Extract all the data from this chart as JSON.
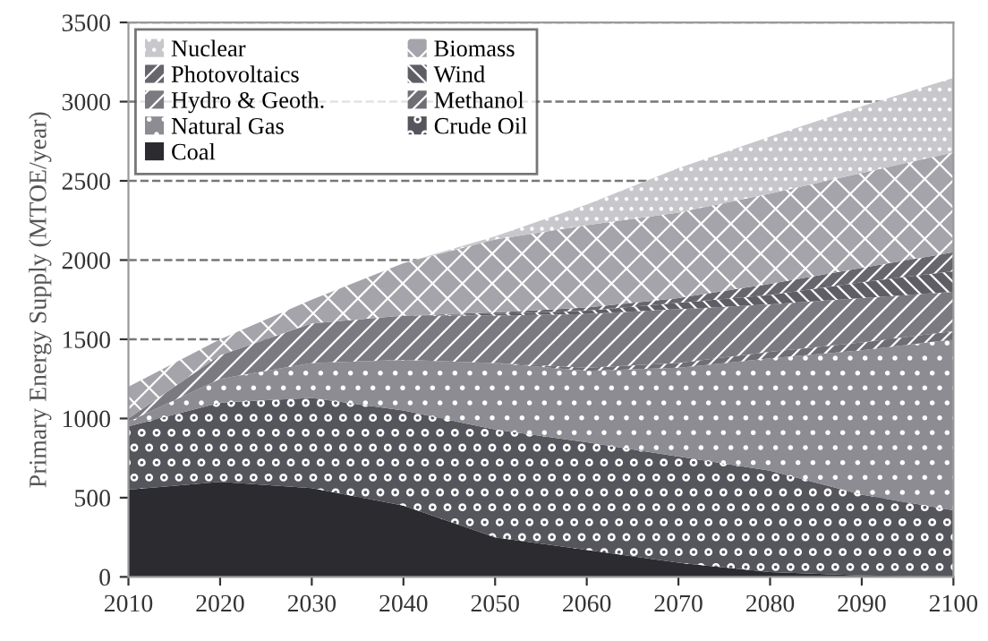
{
  "chart_data": {
    "type": "area",
    "stacked": true,
    "ylabel": "Primary Energy Supply (MTOE/year)",
    "x": [
      2010,
      2020,
      2030,
      2040,
      2050,
      2060,
      2070,
      2080,
      2090,
      2100
    ],
    "xlim": [
      2010,
      2100
    ],
    "xticks": [
      2010,
      2020,
      2030,
      2040,
      2050,
      2060,
      2070,
      2080,
      2090,
      2100
    ],
    "ylim": [
      0,
      3500
    ],
    "yticks": [
      0,
      500,
      1000,
      1500,
      2000,
      2500,
      3000,
      3500
    ],
    "grid": "y",
    "legend": "top left",
    "series": [
      {
        "name": "Coal",
        "color": "#2b2b30",
        "values": [
          550,
          600,
          560,
          450,
          250,
          170,
          90,
          30,
          10,
          0
        ]
      },
      {
        "name": "Crude Oil",
        "color": "#55555c",
        "values": [
          400,
          500,
          570,
          600,
          680,
          680,
          670,
          640,
          510,
          420
        ]
      },
      {
        "name": "Natural Gas",
        "color": "#8c8c92",
        "values": [
          30,
          150,
          220,
          320,
          420,
          450,
          560,
          710,
          910,
          1080
        ]
      },
      {
        "name": "Methanol",
        "color": "#6e6e74",
        "values": [
          0,
          0,
          0,
          0,
          0,
          20,
          30,
          40,
          50,
          50
        ]
      },
      {
        "name": "Hydro & Geoth.",
        "color": "#7a7a80",
        "values": [
          20,
          150,
          250,
          280,
          300,
          340,
          340,
          300,
          280,
          250
        ]
      },
      {
        "name": "Wind",
        "color": "#5e5e64",
        "values": [
          0,
          0,
          0,
          0,
          10,
          20,
          40,
          60,
          100,
          130
        ]
      },
      {
        "name": "Photovoltaics",
        "color": "#66666c",
        "values": [
          0,
          0,
          0,
          0,
          10,
          20,
          30,
          70,
          90,
          120
        ]
      },
      {
        "name": "Biomass",
        "color": "#a4a4aa",
        "values": [
          200,
          100,
          150,
          330,
          460,
          520,
          540,
          570,
          600,
          630
        ]
      },
      {
        "name": "Nuclear",
        "color": "#c8c8cc",
        "values": [
          0,
          0,
          0,
          0,
          20,
          130,
          280,
          360,
          420,
          470
        ]
      }
    ]
  }
}
